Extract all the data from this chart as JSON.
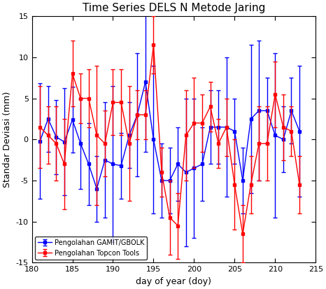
{
  "title": "Time Series DELS N Metode Jaring",
  "xlabel": "day of year (doy)",
  "ylabel": "Standar Deviasi (mm)",
  "xlim": [
    180,
    215
  ],
  "ylim": [
    -15,
    15
  ],
  "xticks": [
    180,
    185,
    190,
    195,
    200,
    205,
    210,
    215
  ],
  "yticks": [
    -15,
    -10,
    -5,
    0,
    5,
    10,
    15
  ],
  "blue_label": "Pengolahan GAMIT/GBOLK",
  "red_label": "Pengolahan Topcon Tools",
  "blue_color": "#0000ff",
  "red_color": "#ff0000",
  "blue_x": [
    181,
    182,
    183,
    184,
    185,
    186,
    187,
    188,
    189,
    190,
    191,
    192,
    193,
    194,
    195,
    196,
    197,
    198,
    199,
    200,
    201,
    202,
    203,
    204,
    205,
    206,
    207,
    208,
    209,
    210,
    211,
    212,
    213
  ],
  "blue_y": [
    -0.2,
    2.5,
    0.3,
    -0.3,
    2.4,
    -0.5,
    -3.0,
    -6.0,
    -2.5,
    -3.0,
    -3.2,
    0.5,
    3.0,
    7.0,
    0.0,
    -5.0,
    -5.0,
    -3.0,
    -4.0,
    -3.5,
    -3.0,
    1.5,
    1.5,
    1.5,
    1.0,
    -5.0,
    2.5,
    3.5,
    3.5,
    0.5,
    0.0,
    3.5,
    1.0
  ],
  "blue_err": [
    7.0,
    4.0,
    4.5,
    6.5,
    4.0,
    5.5,
    5.0,
    4.0,
    7.0,
    9.5,
    4.0,
    4.0,
    7.5,
    8.5,
    9.0,
    4.5,
    4.0,
    4.5,
    9.0,
    8.5,
    4.5,
    4.5,
    4.5,
    8.5,
    4.0,
    4.0,
    9.0,
    8.5,
    4.0,
    10.0,
    4.0,
    4.0,
    8.0
  ],
  "red_x": [
    181,
    182,
    183,
    184,
    185,
    186,
    187,
    188,
    189,
    190,
    191,
    192,
    193,
    194,
    195,
    196,
    197,
    198,
    199,
    200,
    201,
    202,
    203,
    204,
    205,
    206,
    207,
    208,
    209,
    210,
    211,
    212,
    213
  ],
  "red_y": [
    1.5,
    0.5,
    -0.5,
    -3.0,
    8.0,
    5.0,
    5.0,
    0.5,
    -0.5,
    4.5,
    4.5,
    -0.5,
    3.0,
    3.0,
    11.5,
    -4.0,
    -9.5,
    -10.5,
    0.5,
    2.0,
    2.0,
    4.0,
    -0.5,
    1.5,
    -5.5,
    -11.5,
    -5.5,
    -0.5,
    -0.5,
    5.5,
    1.5,
    1.0,
    -5.5
  ],
  "red_err": [
    5.0,
    3.5,
    4.5,
    5.5,
    4.0,
    3.0,
    3.5,
    8.5,
    4.0,
    4.0,
    4.0,
    7.0,
    3.0,
    3.0,
    3.5,
    3.0,
    4.5,
    4.0,
    5.5,
    5.5,
    3.5,
    3.0,
    3.0,
    3.5,
    5.5,
    3.5,
    3.5,
    4.5,
    4.5,
    4.0,
    4.0,
    3.0,
    3.5
  ],
  "title_fontsize": 11,
  "label_fontsize": 9,
  "tick_fontsize": 8,
  "legend_fontsize": 7,
  "marker_size": 3,
  "line_width": 1.0,
  "elinewidth": 1.0,
  "capsize": 2
}
